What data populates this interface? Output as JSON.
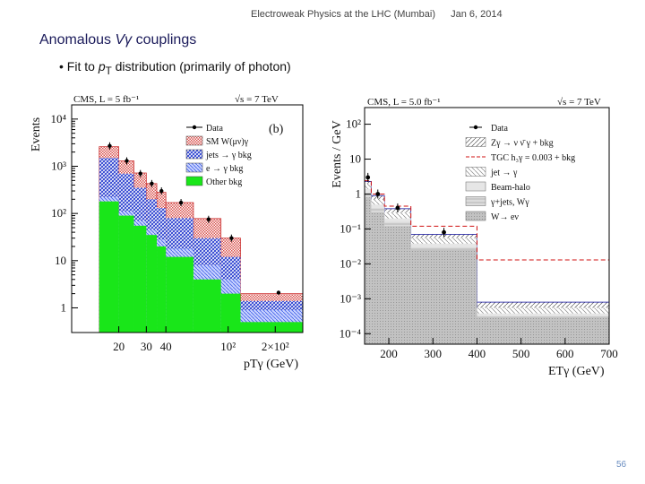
{
  "slide": {
    "header_left": "Electroweak Physics at the LHC (Mumbai)",
    "header_right": "Jan 6, 2014",
    "title_prefix": "Anomalous ",
    "title_symbol": "Vγ",
    "title_suffix": " couplings",
    "bullet_prefix": "Fit to ",
    "bullet_var": "p",
    "bullet_sub": "T",
    "bullet_suffix": " distribution (primarily of photon)",
    "page_number": "56"
  },
  "colors": {
    "title": "#1a1a5a",
    "data": "#000000",
    "sm_signal": "#d9534f",
    "jets_bkg": "#2a3fd0",
    "e_gamma": "#7090ff",
    "other_bkg": "#19e619",
    "tgc": "#d01010",
    "gray_fill": "#b5b5b5"
  },
  "chart_data": [
    {
      "type": "bar",
      "top_left": "CMS, L = 5 fb⁻¹",
      "top_right": "√s = 7 TeV",
      "label": "(b)",
      "ylabel": "Events",
      "xlabel_tick_text": [
        "20",
        "30",
        "40",
        "10²",
        "2×10²"
      ],
      "xlabel": "pTγ (GeV)",
      "log_y": true,
      "ylim": [
        0.3,
        20000
      ],
      "xlim": [
        10,
        300
      ],
      "x_log": true,
      "ytick_labels": [
        "1",
        "10",
        "10²",
        "10³",
        "10⁴"
      ],
      "ytick_values": [
        1,
        10,
        100,
        1000,
        10000
      ],
      "bin_edges": [
        15,
        20,
        25,
        30,
        35,
        40,
        60,
        90,
        120,
        300
      ],
      "series": [
        {
          "name": "Other bkg",
          "values": [
            180,
            90,
            55,
            35,
            20,
            12,
            4,
            2,
            0.5
          ]
        },
        {
          "name": "e → γ bkg",
          "values": [
            220,
            110,
            70,
            45,
            28,
            18,
            8,
            4,
            0.9
          ]
        },
        {
          "name": "jets → γ bkg",
          "values": [
            1500,
            700,
            350,
            200,
            130,
            80,
            30,
            12,
            1.4
          ]
        },
        {
          "name": "SM W(μν)γ",
          "values": [
            2600,
            1300,
            720,
            430,
            280,
            170,
            78,
            30,
            2.0
          ]
        }
      ],
      "data_points": {
        "name": "Data",
        "x": [
          17.5,
          22.5,
          27.5,
          32.5,
          37.5,
          50,
          75,
          105
        ],
        "y": [
          2700,
          1300,
          700,
          430,
          300,
          170,
          75,
          30
        ]
      },
      "data_last": {
        "x": 210,
        "y": 2.1
      },
      "legend": [
        "Data",
        "SM W(μν)γ",
        "jets → γ bkg",
        "e → γ bkg",
        "Other bkg"
      ],
      "legend_position": "top-right"
    },
    {
      "type": "bar",
      "top_left": "CMS, L = 5.0 fb⁻¹",
      "top_right": "√s = 7 TeV",
      "ylabel": "Events / GeV",
      "xlabel": "ETγ (GeV)",
      "log_y": true,
      "ylim": [
        5e-05,
        300
      ],
      "xlim": [
        145,
        700
      ],
      "ytick_labels": [
        "10⁻⁴",
        "10⁻³",
        "10⁻²",
        "10⁻¹",
        "1",
        "10",
        "10²"
      ],
      "ytick_values": [
        0.0001,
        0.001,
        0.01,
        0.1,
        1,
        10,
        100
      ],
      "xtick_labels": [
        "200",
        "300",
        "400",
        "500",
        "600",
        "700"
      ],
      "xtick_values": [
        200,
        300,
        400,
        500,
        600,
        700
      ],
      "bin_edges": [
        145,
        160,
        190,
        250,
        400,
        700
      ],
      "series": [
        {
          "name": "W→ eν",
          "values": [
            0.8,
            0.3,
            0.12,
            0.025,
            0.00028
          ]
        },
        {
          "name": "γ+jets, Wγ",
          "values": [
            1.1,
            0.4,
            0.16,
            0.03,
            0.00032
          ]
        },
        {
          "name": "Beam-halo",
          "values": [
            1.4,
            0.5,
            0.2,
            0.038,
            0.00038
          ]
        },
        {
          "name": "jet → γ",
          "values": [
            2.0,
            0.7,
            0.3,
            0.055,
            0.00055
          ]
        },
        {
          "name": "Zγ → ν ν̄ γ + bkg",
          "values": [
            2.3,
            0.9,
            0.38,
            0.07,
            0.0008
          ]
        }
      ],
      "tgc": {
        "name": "TGC h₃γ = 0.003 + bkg",
        "values": [
          2.4,
          1.0,
          0.45,
          0.12,
          0.013
        ]
      },
      "data_points": {
        "name": "Data",
        "x": [
          152.5,
          175,
          220,
          325
        ],
        "y": [
          3.0,
          1.0,
          0.4,
          0.08
        ]
      },
      "legend": [
        "Data",
        "Zγ → ν ν̄ γ + bkg",
        "TGC h₃γ = 0.003 + bkg",
        "jet → γ",
        "Beam-halo",
        "γ+jets, Wγ",
        "W→ eν"
      ],
      "legend_position": "top-right"
    }
  ]
}
